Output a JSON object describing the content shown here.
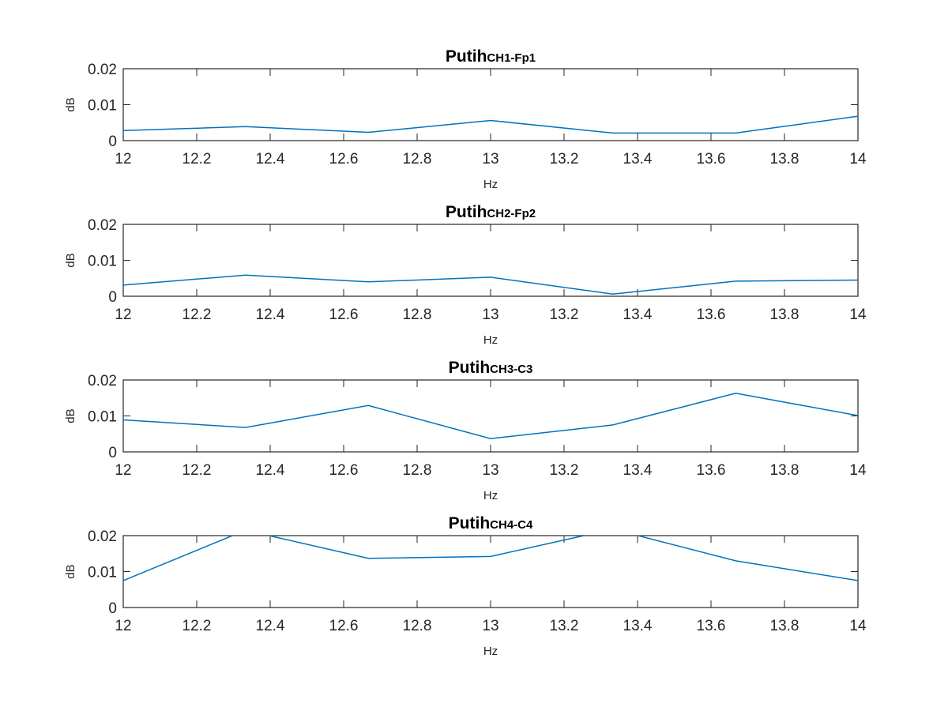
{
  "chart_data": [
    {
      "type": "line",
      "title": "Putih",
      "title_subscript": "CH1-Fp1",
      "xlabel": "Hz",
      "ylabel": "dB",
      "xlim": [
        12,
        14
      ],
      "ylim": [
        0,
        0.02
      ],
      "xticks": [
        "12",
        "12.2",
        "12.4",
        "12.6",
        "12.8",
        "13",
        "13.2",
        "13.4",
        "13.6",
        "13.8",
        "14"
      ],
      "yticks": [
        "0",
        "0.01",
        "0.02"
      ],
      "grid": false,
      "series": [
        {
          "x": [
            12,
            12.333,
            12.667,
            13,
            13.333,
            13.667,
            14
          ],
          "y": [
            0.0028,
            0.0039,
            0.0023,
            0.0056,
            0.0021,
            0.0021,
            0.0068
          ]
        }
      ]
    },
    {
      "type": "line",
      "title": "Putih",
      "title_subscript": "CH2-Fp2",
      "xlabel": "Hz",
      "ylabel": "dB",
      "xlim": [
        12,
        14
      ],
      "ylim": [
        0,
        0.02
      ],
      "xticks": [
        "12",
        "12.2",
        "12.4",
        "12.6",
        "12.8",
        "13",
        "13.2",
        "13.4",
        "13.6",
        "13.8",
        "14"
      ],
      "yticks": [
        "0",
        "0.01",
        "0.02"
      ],
      "grid": false,
      "series": [
        {
          "x": [
            12,
            12.333,
            12.667,
            13,
            13.333,
            13.667,
            14
          ],
          "y": [
            0.0031,
            0.0059,
            0.004,
            0.0053,
            0.0006,
            0.0042,
            0.0045
          ]
        }
      ]
    },
    {
      "type": "line",
      "title": "Putih",
      "title_subscript": "CH3-C3",
      "xlabel": "Hz",
      "ylabel": "dB",
      "xlim": [
        12,
        14
      ],
      "ylim": [
        0,
        0.02
      ],
      "xticks": [
        "12",
        "12.2",
        "12.4",
        "12.6",
        "12.8",
        "13",
        "13.2",
        "13.4",
        "13.6",
        "13.8",
        "14"
      ],
      "yticks": [
        "0",
        "0.01",
        "0.02"
      ],
      "grid": false,
      "series": [
        {
          "x": [
            12,
            12.333,
            12.667,
            13,
            13.333,
            13.667,
            14
          ],
          "y": [
            0.0089,
            0.0068,
            0.0129,
            0.0037,
            0.0075,
            0.0163,
            0.0101
          ]
        }
      ]
    },
    {
      "type": "line",
      "title": "Putih",
      "title_subscript": "CH4-C4",
      "xlabel": "Hz",
      "ylabel": "dB",
      "xlim": [
        12,
        14
      ],
      "ylim": [
        0,
        0.02
      ],
      "xticks": [
        "12",
        "12.2",
        "12.4",
        "12.6",
        "12.8",
        "13",
        "13.2",
        "13.4",
        "13.6",
        "13.8",
        "14"
      ],
      "yticks": [
        "0",
        "0.01",
        "0.02"
      ],
      "grid": false,
      "series": [
        {
          "x": [
            12,
            12.333,
            12.667,
            13,
            13.333,
            13.667,
            14
          ],
          "y": [
            0.0075,
            0.0215,
            0.0137,
            0.0142,
            0.0218,
            0.013,
            0.0075
          ]
        }
      ]
    }
  ],
  "colors": {
    "line": "#0072BD",
    "axes": "#262626",
    "background": "#ffffff"
  }
}
